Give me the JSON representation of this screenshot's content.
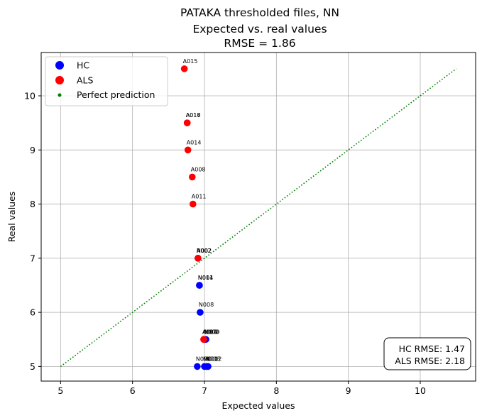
{
  "chart_data": {
    "type": "scatter",
    "title_lines": [
      "PATAKA thresholded files, NN",
      "Expected vs. real values",
      "RMSE = 1.86"
    ],
    "xlabel": "Expected values",
    "ylabel": "Real values",
    "xlim": [
      4.73,
      10.77
    ],
    "ylim": [
      4.73,
      10.8
    ],
    "xticks": [
      5,
      6,
      7,
      8,
      9,
      10
    ],
    "yticks": [
      5,
      6,
      7,
      8,
      9,
      10
    ],
    "grid": true,
    "legend": {
      "placement": "top-left",
      "entries": [
        {
          "label": "HC",
          "color": "#0000ff",
          "marker": "large-dot"
        },
        {
          "label": "ALS",
          "color": "#ff0000",
          "marker": "large-dot"
        },
        {
          "label": "Perfect prediction",
          "color": "#008000",
          "marker": "small-dot"
        }
      ]
    },
    "series": [
      {
        "name": "HC",
        "color": "#0000ff",
        "points": [
          {
            "x": 6.93,
            "y": 6.5,
            "label": "N004"
          },
          {
            "x": 6.93,
            "y": 6.5,
            "label": "N011"
          },
          {
            "x": 6.94,
            "y": 6.0,
            "label": "N008"
          },
          {
            "x": 7.01,
            "y": 5.5,
            "label": "N009"
          },
          {
            "x": 7.02,
            "y": 5.5,
            "label": "N010"
          },
          {
            "x": 6.9,
            "y": 5.0,
            "label": "N006"
          },
          {
            "x": 7.0,
            "y": 5.0,
            "label": "N001"
          },
          {
            "x": 7.03,
            "y": 5.0,
            "label": "N003"
          },
          {
            "x": 7.05,
            "y": 5.0,
            "label": "N002"
          },
          {
            "x": 6.91,
            "y": 7.0,
            "label": "N002"
          }
        ]
      },
      {
        "name": "ALS",
        "color": "#ff0000",
        "points": [
          {
            "x": 6.72,
            "y": 10.5,
            "label": "A015"
          },
          {
            "x": 6.76,
            "y": 9.5,
            "label": "A016"
          },
          {
            "x": 6.76,
            "y": 9.5,
            "label": "A017"
          },
          {
            "x": 6.77,
            "y": 9.0,
            "label": "A014"
          },
          {
            "x": 6.83,
            "y": 8.5,
            "label": "A008"
          },
          {
            "x": 6.84,
            "y": 8.0,
            "label": "A011"
          },
          {
            "x": 6.91,
            "y": 7.0,
            "label": "A002"
          },
          {
            "x": 6.99,
            "y": 5.5,
            "label": "A005"
          },
          {
            "x": 6.99,
            "y": 5.5,
            "label": "A004"
          }
        ]
      }
    ],
    "reference_line": {
      "name": "Perfect prediction",
      "color": "#008000",
      "style": "dotted",
      "x": [
        5,
        10.5
      ],
      "y": [
        5,
        10.5
      ]
    },
    "annotation": {
      "lines": [
        "HC RMSE: 1.47",
        "ALS RMSE: 2.18"
      ],
      "placement": "bottom-right"
    }
  }
}
